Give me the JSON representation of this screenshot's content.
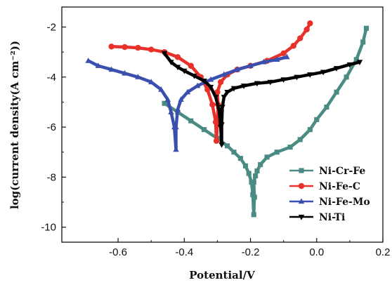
{
  "chart_data": {
    "type": "line",
    "xlabel": "Potential/V",
    "ylabel": "log(current density(A cm⁻²))",
    "xlim": [
      -0.77,
      0.2
    ],
    "ylim": [
      -10.6,
      -1.2
    ],
    "xticks": [
      -0.6,
      -0.4,
      -0.2,
      0.0,
      0.2
    ],
    "xtick_labels": [
      "-0.6",
      "-0.4",
      "-0.2",
      "0.0",
      "0.2"
    ],
    "yticks": [
      -10,
      -8,
      -6,
      -4,
      -2
    ],
    "ytick_labels": [
      "-10",
      "-8",
      "-6",
      "-4",
      "-2"
    ],
    "grid": false,
    "legend_position": "lower-right",
    "series": [
      {
        "name": "Ni-Cr-Fe",
        "color": "#4a8c84",
        "marker": "square",
        "x": [
          -0.46,
          -0.42,
          -0.38,
          -0.34,
          -0.3,
          -0.27,
          -0.25,
          -0.23,
          -0.215,
          -0.205,
          -0.197,
          -0.193,
          -0.19,
          -0.188,
          -0.19,
          -0.185,
          -0.18,
          -0.17,
          -0.15,
          -0.12,
          -0.08,
          -0.05,
          -0.02,
          0.0,
          0.03,
          0.06,
          0.09,
          0.12,
          0.14,
          0.15
        ],
        "y": [
          -5.05,
          -5.4,
          -5.75,
          -6.1,
          -6.45,
          -6.75,
          -7.0,
          -7.25,
          -7.55,
          -7.85,
          -8.2,
          -8.7,
          -9.5,
          -8.8,
          -8.2,
          -7.95,
          -7.75,
          -7.5,
          -7.2,
          -7.0,
          -6.8,
          -6.5,
          -6.1,
          -5.7,
          -5.2,
          -4.6,
          -4.0,
          -3.3,
          -2.6,
          -2.05
        ]
      },
      {
        "name": "Ni-Fe-C",
        "color": "#e8312a",
        "marker": "circle",
        "x": [
          -0.62,
          -0.58,
          -0.54,
          -0.5,
          -0.46,
          -0.42,
          -0.38,
          -0.35,
          -0.33,
          -0.315,
          -0.305,
          -0.303,
          -0.3,
          -0.298,
          -0.3,
          -0.29,
          -0.27,
          -0.24,
          -0.2,
          -0.15,
          -0.1,
          -0.07,
          -0.05,
          -0.03,
          -0.02
        ],
        "y": [
          -2.78,
          -2.8,
          -2.83,
          -2.9,
          -3.0,
          -3.2,
          -3.55,
          -4.0,
          -4.5,
          -5.1,
          -5.8,
          -6.55,
          -5.9,
          -5.1,
          -4.6,
          -4.2,
          -3.9,
          -3.7,
          -3.55,
          -3.35,
          -3.05,
          -2.75,
          -2.45,
          -2.1,
          -1.85
        ]
      },
      {
        "name": "Ni-Fe-Mo",
        "color": "#3b4fae",
        "marker": "triangle-up",
        "x": [
          -0.69,
          -0.66,
          -0.62,
          -0.58,
          -0.54,
          -0.5,
          -0.47,
          -0.45,
          -0.44,
          -0.43,
          -0.425,
          -0.425,
          -0.42,
          -0.41,
          -0.39,
          -0.36,
          -0.32,
          -0.28,
          -0.24,
          -0.2,
          -0.16,
          -0.12,
          -0.09
        ],
        "y": [
          -3.35,
          -3.55,
          -3.7,
          -3.85,
          -4.0,
          -4.2,
          -4.5,
          -4.9,
          -5.4,
          -6.0,
          -6.9,
          -6.0,
          -5.3,
          -4.9,
          -4.6,
          -4.35,
          -4.1,
          -3.9,
          -3.7,
          -3.55,
          -3.4,
          -3.3,
          -3.2
        ]
      },
      {
        "name": "Ni-Ti",
        "color": "#000000",
        "marker": "triangle-down",
        "x": [
          -0.46,
          -0.44,
          -0.42,
          -0.4,
          -0.37,
          -0.34,
          -0.32,
          -0.305,
          -0.295,
          -0.29,
          -0.287,
          -0.287,
          -0.285,
          -0.28,
          -0.27,
          -0.25,
          -0.22,
          -0.18,
          -0.14,
          -0.1,
          -0.06,
          -0.02,
          0.02,
          0.06,
          0.1,
          0.13
        ],
        "y": [
          -3.05,
          -3.4,
          -3.6,
          -3.75,
          -3.95,
          -4.15,
          -4.4,
          -4.8,
          -5.3,
          -6.0,
          -6.7,
          -5.9,
          -5.2,
          -4.8,
          -4.6,
          -4.45,
          -4.35,
          -4.25,
          -4.2,
          -4.1,
          -4.0,
          -3.9,
          -3.8,
          -3.65,
          -3.5,
          -3.4
        ]
      }
    ]
  }
}
